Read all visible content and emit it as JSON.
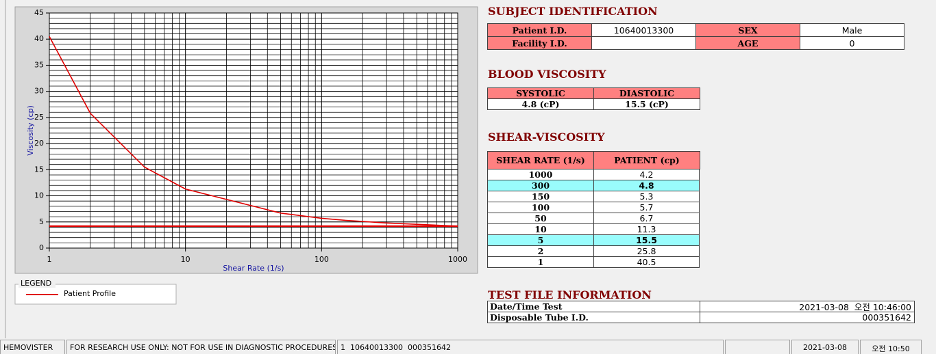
{
  "chart_data": {
    "type": "line",
    "x_label": "Shear Rate (1/s)",
    "y_label": "Viscosity (cp)",
    "x": [
      1,
      2,
      5,
      10,
      50,
      100,
      150,
      300,
      1000
    ],
    "series": [
      {
        "name": "Patient Profile",
        "color": "#e00000",
        "values": [
          40.5,
          25.8,
          15.5,
          11.3,
          6.7,
          5.7,
          5.3,
          4.8,
          4.2
        ]
      },
      {
        "color": "#e00000",
        "values": [
          4.2,
          4.2,
          4.2,
          4.2,
          4.2,
          4.2,
          4.2,
          4.2,
          4.2
        ]
      }
    ],
    "xlim": [
      1,
      1000
    ],
    "xticks": [
      1,
      10,
      100,
      1000
    ],
    "xlog": true,
    "ylim": [
      0,
      45
    ],
    "yticks": [
      0,
      5,
      10,
      15,
      20,
      25,
      30,
      35,
      40,
      45
    ],
    "grid": true,
    "minor_grid": true
  },
  "legend_title": "LEGEND",
  "subject_identification": {
    "title": "SUBJECT IDENTIFICATION",
    "fields": [
      {
        "label": "Patient I.D.",
        "value": "10640013300"
      },
      {
        "label": "SEX",
        "value": "Male"
      },
      {
        "label": "Facility I.D."
      },
      {
        "label": "AGE",
        "value": "0"
      }
    ]
  },
  "blood_viscosity": {
    "title": "BLOOD VISCOSITY",
    "headers": [
      "SYSTOLIC",
      "DIASTOLIC"
    ],
    "values": [
      "4.8 (cP)",
      "15.5 (cP)"
    ]
  },
  "shear_viscosity": {
    "title": "SHEAR-VISCOSITY",
    "headers": [
      "SHEAR RATE (1/s)",
      "PATIENT (cp)"
    ],
    "rows": [
      {
        "rate": "1000",
        "patient": "4.2"
      },
      {
        "rate": "300",
        "patient": "4.8",
        "highlight": true
      },
      {
        "rate": "150",
        "patient": "5.3"
      },
      {
        "rate": "100",
        "patient": "5.7"
      },
      {
        "rate": "50",
        "patient": "6.7"
      },
      {
        "rate": "10",
        "patient": "11.3"
      },
      {
        "rate": "5",
        "patient": "15.5",
        "highlight": true
      },
      {
        "rate": "2",
        "patient": "25.8"
      },
      {
        "rate": "1",
        "patient": "40.5"
      }
    ]
  },
  "test_file": {
    "title": "TEST FILE INFORMATION",
    "rows": [
      [
        "Date/Time Test",
        "2021-03-08  오전 10:46:00"
      ],
      [
        "Disposable Tube I.D.",
        "000351642"
      ]
    ]
  },
  "status_bar": [
    "HEMOVISTER",
    "FOR RESEARCH USE ONLY: NOT FOR USE IN DIAGNOSTIC PROCEDURES",
    "1  10640013300  000351642",
    "2021-03-08",
    "오전 10:50"
  ]
}
